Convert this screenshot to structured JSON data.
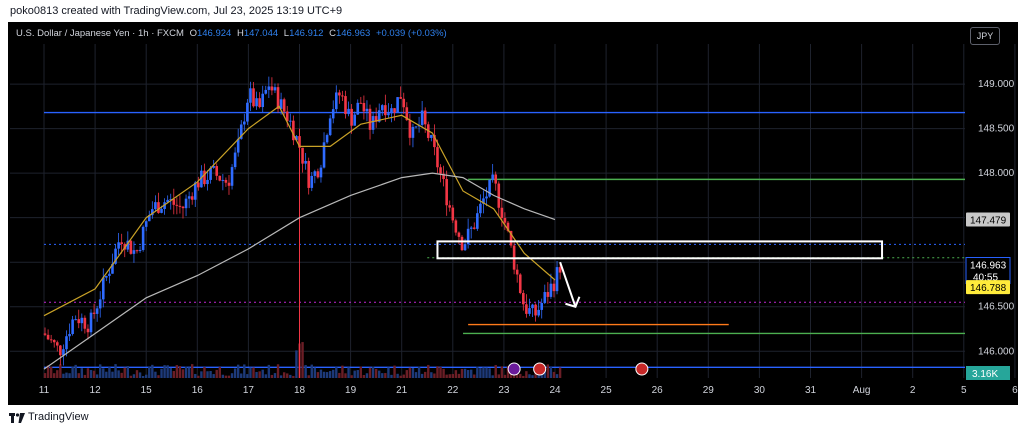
{
  "header": {
    "credit": "poko0813 created with TradingView.com, Jul 23, 2025 13:19 UTC+9"
  },
  "legend": {
    "symbol": "U.S. Dollar / Japanese Yen · 1h · FXCM",
    "o_label": "O",
    "o_value": "146.924",
    "h_label": "H",
    "h_value": "147.044",
    "l_label": "L",
    "l_value": "146.912",
    "c_label": "C",
    "c_value": "146.963",
    "change": "+0.039 (+0.03%)"
  },
  "currency_button": "JPY",
  "price_axis": {
    "ticks": [
      "149.000",
      "148.500",
      "148.000",
      "146.500",
      "146.000"
    ],
    "badges": {
      "sma": "147.479",
      "last_price": "146.963",
      "countdown": "40:55",
      "level": "146.788",
      "volume": "3.16K"
    }
  },
  "time_axis": {
    "labels": [
      "11",
      "12",
      "15",
      "16",
      "17",
      "18",
      "19",
      "21",
      "22",
      "23",
      "24",
      "25",
      "26",
      "29",
      "30",
      "31",
      "Aug",
      "2",
      "5",
      "6"
    ]
  },
  "footer": {
    "brand": "TradingView"
  },
  "colors": {
    "background": "#000000",
    "up": "#2f6bff",
    "down": "#f23645",
    "sma_short": "#c9a227",
    "sma_long": "#b8b8b8",
    "blue_level": "#2962ff",
    "green_level": "#4caf50",
    "orange_level": "#ff7a1a",
    "dotted_magenta": "#c026d3"
  },
  "chart_data": {
    "type": "candlestick",
    "symbol": "USDJPY",
    "timeframe": "1h",
    "y_range": [
      145.7,
      149.45
    ],
    "x_range_days": [
      "11",
      "12",
      "15",
      "16",
      "17",
      "18",
      "19",
      "21",
      "22",
      "23",
      "24",
      "25",
      "26",
      "29",
      "30",
      "31",
      "Aug",
      "2",
      "5",
      "6"
    ],
    "price_path": [
      [
        0,
        146.2
      ],
      [
        0.3,
        146.0
      ],
      [
        0.6,
        146.4
      ],
      [
        0.9,
        146.3
      ],
      [
        1.2,
        146.8
      ],
      [
        1.5,
        147.3
      ],
      [
        1.8,
        147.1
      ],
      [
        2.1,
        147.6
      ],
      [
        2.4,
        147.7
      ],
      [
        2.7,
        147.6
      ],
      [
        3.0,
        147.9
      ],
      [
        3.3,
        148.0
      ],
      [
        3.6,
        147.9
      ],
      [
        3.8,
        148.3
      ],
      [
        4.0,
        148.9
      ],
      [
        4.2,
        148.7
      ],
      [
        4.4,
        149.0
      ],
      [
        4.6,
        148.8
      ],
      [
        4.8,
        148.6
      ],
      [
        5.0,
        148.3
      ],
      [
        5.2,
        147.9
      ],
      [
        5.4,
        148.1
      ],
      [
        5.6,
        148.7
      ],
      [
        5.8,
        148.9
      ],
      [
        6.0,
        148.6
      ],
      [
        6.2,
        148.8
      ],
      [
        6.4,
        148.5
      ],
      [
        6.6,
        148.8
      ],
      [
        6.8,
        148.7
      ],
      [
        7.0,
        148.9
      ],
      [
        7.2,
        148.4
      ],
      [
        7.4,
        148.6
      ],
      [
        7.6,
        148.3
      ],
      [
        7.8,
        147.9
      ],
      [
        8.0,
        147.5
      ],
      [
        8.2,
        147.2
      ],
      [
        8.4,
        147.4
      ],
      [
        8.6,
        147.7
      ],
      [
        8.8,
        147.9
      ],
      [
        9.0,
        147.5
      ],
      [
        9.2,
        147.0
      ],
      [
        9.4,
        146.5
      ],
      [
        9.6,
        146.4
      ],
      [
        9.8,
        146.6
      ],
      [
        10.0,
        146.8
      ],
      [
        10.1,
        146.963
      ]
    ],
    "sma_short": [
      [
        0,
        146.4
      ],
      [
        1,
        146.7
      ],
      [
        2,
        147.5
      ],
      [
        3,
        147.9
      ],
      [
        4,
        148.5
      ],
      [
        4.6,
        148.75
      ],
      [
        5,
        148.3
      ],
      [
        5.6,
        148.3
      ],
      [
        6.2,
        148.55
      ],
      [
        7,
        148.65
      ],
      [
        7.6,
        148.45
      ],
      [
        8.2,
        147.8
      ],
      [
        8.8,
        147.6
      ],
      [
        9.4,
        147.1
      ],
      [
        10.0,
        146.8
      ]
    ],
    "sma_long": [
      [
        0,
        145.8
      ],
      [
        1,
        146.2
      ],
      [
        2,
        146.6
      ],
      [
        3,
        146.85
      ],
      [
        4,
        147.15
      ],
      [
        5,
        147.5
      ],
      [
        6,
        147.75
      ],
      [
        7,
        147.95
      ],
      [
        7.6,
        148.0
      ],
      [
        8.2,
        147.95
      ],
      [
        8.8,
        147.75
      ],
      [
        9.4,
        147.6
      ],
      [
        10.0,
        147.479
      ]
    ],
    "levels": [
      {
        "price": 148.68,
        "style": "solid",
        "color": "blue",
        "x_start": 0,
        "x_end": 20
      },
      {
        "price": 147.93,
        "style": "solid",
        "color": "green",
        "x_start": 8.3,
        "x_end": 20
      },
      {
        "price": 147.2,
        "style": "dotted",
        "color": "blue",
        "x_start": 0,
        "x_end": 20
      },
      {
        "price": 147.05,
        "style": "dotted",
        "color": "green",
        "x_start": 7.5,
        "x_end": 20
      },
      {
        "price": 146.55,
        "style": "dotted",
        "color": "magenta",
        "x_start": 0,
        "x_end": 20
      },
      {
        "price": 146.3,
        "style": "solid",
        "color": "orange",
        "x_start": 8.3,
        "x_end": 13.4
      },
      {
        "price": 146.2,
        "style": "solid",
        "color": "green",
        "x_start": 8.2,
        "x_end": 20
      },
      {
        "price": 145.82,
        "style": "solid",
        "color": "blue",
        "x_start": 0,
        "x_end": 20
      }
    ],
    "zone": {
      "price_top": 147.2,
      "price_bottom": 147.1,
      "x_start": 7.7,
      "x_end": 16.4
    },
    "arrow": {
      "from": [
        10.1,
        147.0
      ],
      "to": [
        10.4,
        146.5
      ]
    }
  }
}
